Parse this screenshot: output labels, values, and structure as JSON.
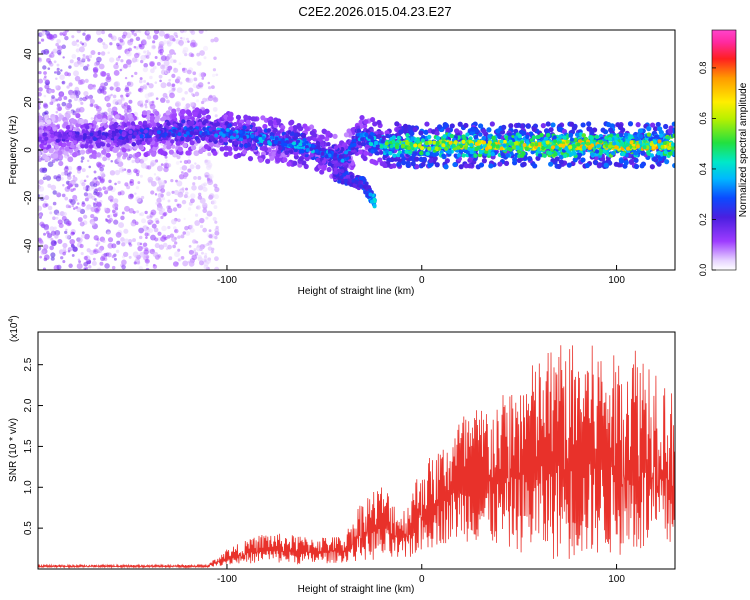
{
  "title": "C2E2.2026.015.04.23.E27",
  "chart_data": [
    {
      "type": "heatmap",
      "id": "spectrogram",
      "xlabel": "Height of straight line (km)",
      "ylabel": "Frequency (Hz)",
      "xlim": [
        -197,
        130
      ],
      "ylim": [
        -50,
        50
      ],
      "xticks": [
        -100,
        0,
        100
      ],
      "xtick_labels": [
        "-100",
        "0",
        "100"
      ],
      "yticks": [
        -40,
        -20,
        0,
        20,
        40
      ],
      "ytick_labels": [
        "-40",
        "-20",
        "0",
        "20",
        "40"
      ],
      "colorbar": {
        "label": "Normalized spectral amplitude",
        "range": [
          0.0,
          0.95
        ],
        "ticks": [
          0.0,
          0.2,
          0.4,
          0.6,
          0.8
        ],
        "tick_labels": [
          "0.0",
          "0.2",
          "0.4",
          "0.6",
          "0.8"
        ],
        "colormap": "white-purple-blue-cyan-green-yellow-orange-red-magenta"
      },
      "features": [
        {
          "name": "signal band",
          "x": [
            -197,
            -110,
            -60,
            -40,
            -32,
            -20,
            0,
            130
          ],
          "center_freq_hz": [
            5,
            8,
            2,
            -4,
            6,
            2,
            2,
            2
          ],
          "amplitude": [
            0.15,
            0.3,
            0.35,
            0.3,
            0.3,
            0.45,
            0.6,
            0.65
          ]
        },
        {
          "name": "drifting branch",
          "x": [
            -45,
            -30,
            -24
          ],
          "center_freq_hz": [
            -10,
            -14,
            -22
          ],
          "amplitude": [
            0.2,
            0.25,
            0.35
          ]
        },
        {
          "name": "broadband noise",
          "x": [
            -197,
            -105
          ],
          "freq_range_hz": [
            -50,
            50
          ],
          "amplitude": 0.12
        }
      ]
    },
    {
      "type": "line",
      "id": "snr",
      "xlabel": "Height of straight line (km)",
      "ylabel": "SNR (10 * v/v)",
      "y_multiplier_label": "(x10",
      "y_multiplier_exp": "4",
      "y_multiplier_close": ")",
      "xlim": [
        -197,
        130
      ],
      "ylim": [
        0,
        2.9
      ],
      "xticks": [
        -100,
        0,
        100
      ],
      "xtick_labels": [
        "-100",
        "0",
        "100"
      ],
      "yticks": [
        0.5,
        1.0,
        1.5,
        2.0,
        2.5
      ],
      "ytick_labels": [
        "0.5",
        "1.0",
        "1.5",
        "2.0",
        "2.5"
      ],
      "color": "#e8312a",
      "envelope": {
        "x": [
          -197,
          -110,
          -100,
          -80,
          -60,
          -40,
          -30,
          -20,
          -10,
          0,
          10,
          20,
          30,
          40,
          50,
          60,
          70,
          80,
          90,
          100,
          110,
          120,
          130
        ],
        "low": [
          0.02,
          0.02,
          0.05,
          0.08,
          0.05,
          0.08,
          0.1,
          0.1,
          0.08,
          0.2,
          0.3,
          0.35,
          0.3,
          0.25,
          0.2,
          0.15,
          0.1,
          0.1,
          0.15,
          0.15,
          0.15,
          0.15,
          0.2
        ],
        "high": [
          0.05,
          0.05,
          0.25,
          0.45,
          0.4,
          0.4,
          0.9,
          1.05,
          0.7,
          1.3,
          1.5,
          1.9,
          2.0,
          2.1,
          2.35,
          2.6,
          2.8,
          2.75,
          2.75,
          2.6,
          2.8,
          2.6,
          2.1
        ]
      }
    }
  ]
}
